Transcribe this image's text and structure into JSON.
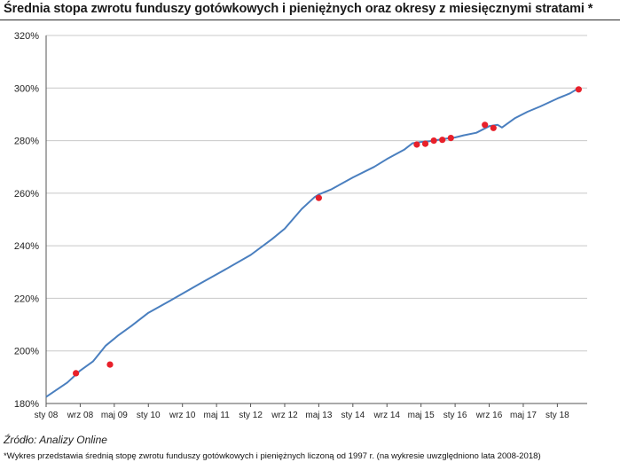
{
  "title": "Średnia stopa zwrotu funduszy gotówkowych i pieniężnych oraz okresy z miesięcznymi stratami *",
  "source": "Źródło: Analizy Online",
  "footnote": "*Wykres przedstawia średnią stopę zwrotu funduszy gotówkowych i pieniężnych liczoną od 1997 r. (na wykresie uwzględniono lata 2008-2018)",
  "colors": {
    "line": "#4a7fbf",
    "marker": "#e8202a",
    "grid": "#c8c8c8",
    "axis": "#555555"
  },
  "chart_data": {
    "type": "line",
    "title": "Średnia stopa zwrotu funduszy gotówkowych i pieniężnych oraz okresy z miesięcznymi stratami *",
    "xlabel": "",
    "ylabel": "",
    "ylim": [
      180,
      320
    ],
    "grid": true,
    "x_ticks": [
      "sty 08",
      "wrz 08",
      "maj 09",
      "sty 10",
      "wrz 10",
      "maj 11",
      "sty 12",
      "wrz 12",
      "maj 13",
      "sty 14",
      "wrz 14",
      "maj 15",
      "sty 16",
      "wrz 16",
      "maj 17",
      "sty 18"
    ],
    "y_ticks": [
      "180%",
      "200%",
      "220%",
      "240%",
      "260%",
      "280%",
      "300%",
      "320%"
    ],
    "y_tick_values": [
      180,
      200,
      220,
      240,
      260,
      280,
      300,
      320
    ],
    "series": [
      {
        "x": [
          "2008-01",
          "2008-06",
          "2008-09",
          "2008-12",
          "2009-03",
          "2009-06",
          "2009-09",
          "2010-01",
          "2010-06",
          "2011-01",
          "2011-06",
          "2012-01",
          "2012-06",
          "2012-09",
          "2013-01",
          "2013-04",
          "2013-05",
          "2013-08",
          "2014-01",
          "2014-06",
          "2014-09",
          "2015-01",
          "2015-03",
          "2015-05",
          "2015-07",
          "2015-09",
          "2015-11",
          "2016-01",
          "2016-03",
          "2016-06",
          "2016-09",
          "2016-11",
          "2016-12",
          "2017-03",
          "2017-06",
          "2017-09",
          "2018-01",
          "2018-04",
          "2018-06"
        ],
        "values": [
          182.5,
          188.0,
          192.5,
          196.0,
          202.0,
          206.0,
          209.5,
          214.5,
          219.0,
          225.5,
          230.0,
          236.5,
          242.5,
          246.5,
          254.0,
          258.5,
          259.5,
          261.5,
          266.0,
          270.0,
          273.0,
          276.5,
          279.0,
          279.5,
          279.8,
          280.3,
          280.8,
          281.2,
          282.0,
          283.0,
          285.5,
          286.0,
          285.0,
          288.5,
          291.0,
          293.0,
          296.0,
          298.0,
          300.0
        ]
      }
    ],
    "loss_markers": {
      "x": [
        "2008-08",
        "2009-04",
        "2013-05",
        "2015-04",
        "2015-06",
        "2015-08",
        "2015-10",
        "2015-12",
        "2016-08",
        "2016-10",
        "2018-06"
      ],
      "values": [
        191.5,
        194.8,
        258.2,
        278.5,
        278.8,
        280.0,
        280.3,
        281.0,
        286.0,
        284.8,
        299.5
      ]
    }
  }
}
